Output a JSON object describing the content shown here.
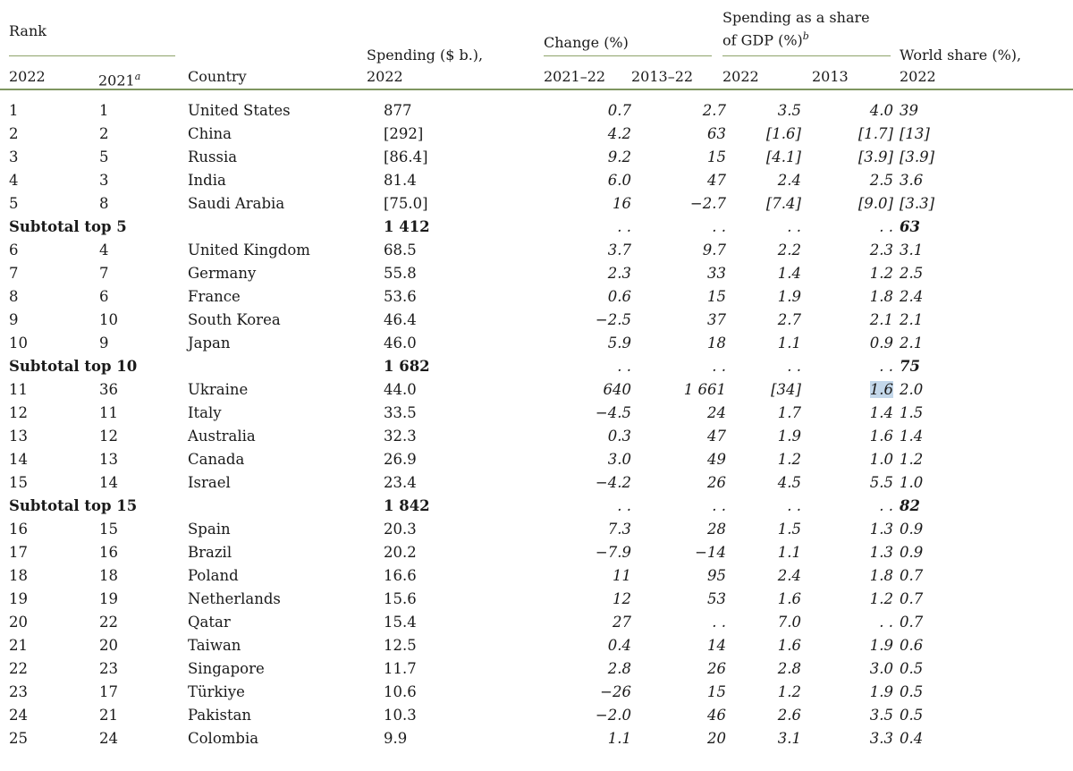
{
  "header": {
    "rank": "Rank",
    "rank_2022": "2022",
    "rank_2021": "2021",
    "rank_2021_note": "a",
    "country": "Country",
    "spending_line1": "Spending ($ b.),",
    "spending_line2": "2022",
    "change": "Change (%)",
    "change_a": "2021–22",
    "change_b": "2013–22",
    "gdp_line1": "Spending as a share",
    "gdp_line2": "of GDP (%)",
    "gdp_note": "b",
    "gdp_a": "2022",
    "gdp_b": "2013",
    "world_line1": "World share (%),",
    "world_line2": "2022"
  },
  "rows": [
    {
      "r22": "1",
      "r21": "1",
      "country": "United States",
      "spend": "877",
      "ch1": "0.7",
      "ch2": "2.7",
      "g22": "3.5",
      "g13": "4.0",
      "ws": "39"
    },
    {
      "r22": "2",
      "r21": "2",
      "country": "China",
      "spend": "[292]",
      "ch1": "4.2",
      "ch2": "63",
      "g22": "[1.6]",
      "g13": "[1.7]",
      "ws": "[13]"
    },
    {
      "r22": "3",
      "r21": "5",
      "country": "Russia",
      "spend": "[86.4]",
      "ch1": "9.2",
      "ch2": "15",
      "g22": "[4.1]",
      "g13": "[3.9]",
      "ws": "[3.9]"
    },
    {
      "r22": "4",
      "r21": "3",
      "country": "India",
      "spend": "81.4",
      "ch1": "6.0",
      "ch2": "47",
      "g22": "2.4",
      "g13": "2.5",
      "ws": "3.6"
    },
    {
      "r22": "5",
      "r21": "8",
      "country": "Saudi Arabia",
      "spend": "[75.0]",
      "ch1": "16",
      "ch2": "−2.7",
      "g22": "[7.4]",
      "g13": "[9.0]",
      "ws": "[3.3]"
    },
    {
      "subtotal": true,
      "label": "Subtotal top 5",
      "spend": "1 412",
      "ch1": ". .",
      "ch2": ". .",
      "g22": ". .",
      "g13": ". .",
      "ws": "63"
    },
    {
      "r22": "6",
      "r21": "4",
      "country": "United Kingdom",
      "spend": "68.5",
      "ch1": "3.7",
      "ch2": "9.7",
      "g22": "2.2",
      "g13": "2.3",
      "ws": "3.1"
    },
    {
      "r22": "7",
      "r21": "7",
      "country": "Germany",
      "spend": "55.8",
      "ch1": "2.3",
      "ch2": "33",
      "g22": "1.4",
      "g13": "1.2",
      "ws": "2.5"
    },
    {
      "r22": "8",
      "r21": "6",
      "country": "France",
      "spend": "53.6",
      "ch1": "0.6",
      "ch2": "15",
      "g22": "1.9",
      "g13": "1.8",
      "ws": "2.4"
    },
    {
      "r22": "9",
      "r21": "10",
      "country": "South Korea",
      "spend": "46.4",
      "ch1": "−2.5",
      "ch2": "37",
      "g22": "2.7",
      "g13": "2.1",
      "ws": "2.1"
    },
    {
      "r22": "10",
      "r21": "9",
      "country": "Japan",
      "spend": "46.0",
      "ch1": "5.9",
      "ch2": "18",
      "g22": "1.1",
      "g13": "0.9",
      "ws": "2.1"
    },
    {
      "subtotal": true,
      "label": "Subtotal top 10",
      "spend": "1 682",
      "ch1": ". .",
      "ch2": ". .",
      "g22": ". .",
      "g13": ". .",
      "ws": "75"
    },
    {
      "r22": "11",
      "r21": "36",
      "country": "Ukraine",
      "spend": "44.0",
      "ch1": "640",
      "ch2": "1 661",
      "g22": "[34]",
      "g13": "1.6",
      "ws": "2.0",
      "hl": true
    },
    {
      "r22": "12",
      "r21": "11",
      "country": "Italy",
      "spend": "33.5",
      "ch1": "−4.5",
      "ch2": "24",
      "g22": "1.7",
      "g13": "1.4",
      "ws": "1.5"
    },
    {
      "r22": "13",
      "r21": "12",
      "country": "Australia",
      "spend": "32.3",
      "ch1": "0.3",
      "ch2": "47",
      "g22": "1.9",
      "g13": "1.6",
      "ws": "1.4"
    },
    {
      "r22": "14",
      "r21": "13",
      "country": "Canada",
      "spend": "26.9",
      "ch1": "3.0",
      "ch2": "49",
      "g22": "1.2",
      "g13": "1.0",
      "ws": "1.2"
    },
    {
      "r22": "15",
      "r21": "14",
      "country": "Israel",
      "spend": "23.4",
      "ch1": "−4.2",
      "ch2": "26",
      "g22": "4.5",
      "g13": "5.5",
      "ws": "1.0"
    },
    {
      "subtotal": true,
      "label": "Subtotal top 15",
      "spend": "1 842",
      "ch1": ". .",
      "ch2": ". .",
      "g22": ". .",
      "g13": ". .",
      "ws": "82"
    },
    {
      "r22": "16",
      "r21": "15",
      "country": "Spain",
      "spend": "20.3",
      "ch1": "7.3",
      "ch2": "28",
      "g22": "1.5",
      "g13": "1.3",
      "ws": "0.9"
    },
    {
      "r22": "17",
      "r21": "16",
      "country": "Brazil",
      "spend": "20.2",
      "ch1": "−7.9",
      "ch2": "−14",
      "g22": "1.1",
      "g13": "1.3",
      "ws": "0.9"
    },
    {
      "r22": "18",
      "r21": "18",
      "country": "Poland",
      "spend": "16.6",
      "ch1": "11",
      "ch2": "95",
      "g22": "2.4",
      "g13": "1.8",
      "ws": "0.7"
    },
    {
      "r22": "19",
      "r21": "19",
      "country": "Netherlands",
      "spend": "15.6",
      "ch1": "12",
      "ch2": "53",
      "g22": "1.6",
      "g13": "1.2",
      "ws": "0.7"
    },
    {
      "r22": "20",
      "r21": "22",
      "country": "Qatar",
      "spend": "15.4",
      "ch1": "27",
      "ch2": ". .",
      "g22": "7.0",
      "g13": ". .",
      "ws": "0.7"
    },
    {
      "r22": "21",
      "r21": "20",
      "country": "Taiwan",
      "spend": "12.5",
      "ch1": "0.4",
      "ch2": "14",
      "g22": "1.6",
      "g13": "1.9",
      "ws": "0.6"
    },
    {
      "r22": "22",
      "r21": "23",
      "country": "Singapore",
      "spend": "11.7",
      "ch1": "2.8",
      "ch2": "26",
      "g22": "2.8",
      "g13": "3.0",
      "ws": "0.5"
    },
    {
      "r22": "23",
      "r21": "17",
      "country": "Türkiye",
      "spend": "10.6",
      "ch1": "−26",
      "ch2": "15",
      "g22": "1.2",
      "g13": "1.9",
      "ws": "0.5"
    },
    {
      "r22": "24",
      "r21": "21",
      "country": "Pakistan",
      "spend": "10.3",
      "ch1": "−2.0",
      "ch2": "46",
      "g22": "2.6",
      "g13": "3.5",
      "ws": "0.5"
    },
    {
      "r22": "25",
      "r21": "24",
      "country": "Colombia",
      "spend": "9.9",
      "ch1": "1.1",
      "ch2": "20",
      "g22": "3.1",
      "g13": "3.3",
      "ws": "0.4"
    }
  ]
}
